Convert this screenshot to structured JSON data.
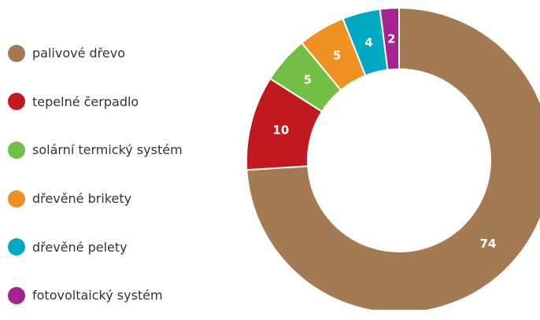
{
  "chart_data": {
    "type": "pie",
    "variant": "donut",
    "title": "",
    "legend_position": "left",
    "slices": [
      {
        "label": "palivové dřevo",
        "value": 74,
        "color": "#a47a52"
      },
      {
        "label": "tepelné čerpadlo",
        "value": 10,
        "color": "#c1191f"
      },
      {
        "label": "solární termický systém",
        "value": 5,
        "color": "#71bf44"
      },
      {
        "label": "dřevěné brikety",
        "value": 5,
        "color": "#ef9121"
      },
      {
        "label": "dřevěné pelety",
        "value": 4,
        "color": "#00a9c2"
      },
      {
        "label": "fotovoltaický systém",
        "value": 2,
        "color": "#a6238f"
      }
    ]
  }
}
